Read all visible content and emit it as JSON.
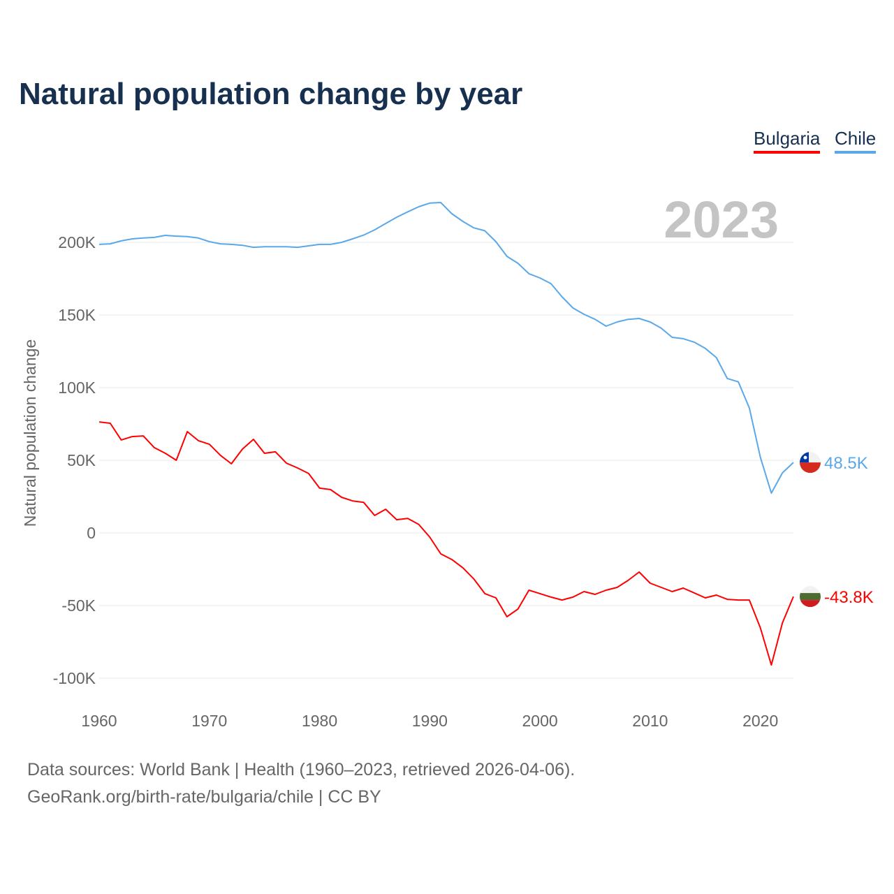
{
  "chart_data": {
    "type": "line",
    "title": "Natural population change by year",
    "xlabel": "",
    "ylabel": "Natural population change",
    "year_label": "2023",
    "xlim": [
      1960,
      2023
    ],
    "ylim": [
      -100000,
      230000
    ],
    "x_ticks": [
      1960,
      1970,
      1980,
      1990,
      2000,
      2010,
      2020
    ],
    "x_tick_labels": [
      "1960",
      "1970",
      "1980",
      "1990",
      "2000",
      "2010",
      "2020"
    ],
    "y_ticks": [
      -100000,
      -50000,
      0,
      50000,
      100000,
      150000,
      200000
    ],
    "y_tick_labels": [
      "-100K",
      "-50K",
      "0",
      "50K",
      "100K",
      "150K",
      "200K"
    ],
    "grid": true,
    "legend_position": "top-right",
    "x": [
      1960,
      1961,
      1962,
      1963,
      1964,
      1965,
      1966,
      1967,
      1968,
      1969,
      1970,
      1971,
      1972,
      1973,
      1974,
      1975,
      1976,
      1977,
      1978,
      1979,
      1980,
      1981,
      1982,
      1983,
      1984,
      1985,
      1986,
      1987,
      1988,
      1989,
      1990,
      1991,
      1992,
      1993,
      1994,
      1995,
      1996,
      1997,
      1998,
      1999,
      2000,
      2001,
      2002,
      2003,
      2004,
      2005,
      2006,
      2007,
      2008,
      2009,
      2010,
      2011,
      2012,
      2013,
      2014,
      2015,
      2016,
      2017,
      2018,
      2019,
      2020,
      2021,
      2022,
      2023
    ],
    "series": [
      {
        "name": "Bulgaria",
        "color": "#ff0000",
        "end_label": "-43.8K",
        "flag": "bulgaria-flag",
        "values": [
          76400,
          75500,
          64000,
          66300,
          66800,
          58700,
          54800,
          50000,
          69700,
          63500,
          61000,
          53400,
          47600,
          57700,
          64400,
          54800,
          55800,
          48000,
          44700,
          40900,
          30800,
          29800,
          24500,
          22000,
          21000,
          12000,
          16300,
          9100,
          10000,
          5800,
          -2900,
          -14400,
          -18300,
          -24000,
          -31700,
          -41800,
          -44700,
          -57700,
          -52400,
          -39400,
          -41800,
          -44200,
          -46200,
          -44200,
          -40400,
          -42300,
          -39400,
          -37500,
          -32700,
          -26900,
          -34600,
          -37500,
          -40400,
          -38000,
          -41300,
          -44700,
          -42800,
          -45700,
          -46200,
          -46200,
          -65400,
          -90900,
          -62000,
          -43800
        ]
      },
      {
        "name": "Chile",
        "color": "#5aa8ea",
        "end_label": "48.5K",
        "flag": "chile-flag",
        "values": [
          198600,
          199000,
          201000,
          202400,
          203000,
          203400,
          204800,
          204300,
          204000,
          203000,
          200500,
          199000,
          198600,
          198000,
          196600,
          197000,
          197000,
          197000,
          196600,
          197600,
          198600,
          198600,
          200000,
          202400,
          205000,
          208600,
          213000,
          217300,
          221000,
          224500,
          227000,
          227400,
          219700,
          214400,
          210000,
          208000,
          200500,
          190400,
          185600,
          178400,
          175500,
          171600,
          162500,
          154800,
          150500,
          147000,
          142300,
          145200,
          147000,
          147600,
          145200,
          140900,
          134600,
          133700,
          131300,
          127000,
          120700,
          106300,
          104000,
          86000,
          52000,
          27400,
          41300,
          48500
        ]
      }
    ]
  },
  "footer": {
    "line1": "Data sources: World Bank | Health (1960–2023, retrieved 2026-04-06).",
    "line2": "GeoRank.org/birth-rate/bulgaria/chile | CC BY"
  }
}
